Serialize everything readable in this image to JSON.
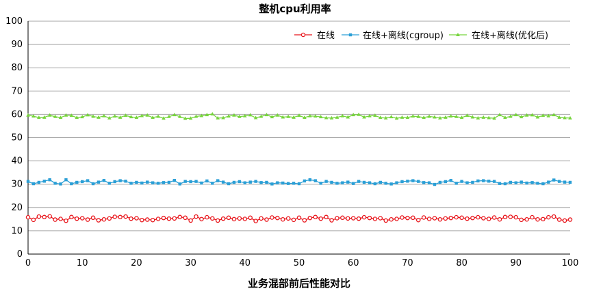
{
  "chart_data": {
    "type": "line",
    "title": "整机cpu利用率",
    "xlabel": "业务混部前后性能对比",
    "ylabel": "",
    "xlim": [
      0,
      100
    ],
    "ylim": [
      0,
      100
    ],
    "xticks": [
      0,
      10,
      20,
      30,
      40,
      50,
      60,
      70,
      80,
      90,
      100
    ],
    "yticks": [
      0,
      10,
      20,
      30,
      40,
      50,
      60,
      70,
      80,
      90,
      100
    ],
    "grid": true,
    "legend_position": "top-right",
    "x": [
      0,
      1,
      2,
      3,
      4,
      5,
      6,
      7,
      8,
      9,
      10,
      11,
      12,
      13,
      14,
      15,
      16,
      17,
      18,
      19,
      20,
      21,
      22,
      23,
      24,
      25,
      26,
      27,
      28,
      29,
      30,
      31,
      32,
      33,
      34,
      35,
      36,
      37,
      38,
      39,
      40,
      41,
      42,
      43,
      44,
      45,
      46,
      47,
      48,
      49,
      50,
      51,
      52,
      53,
      54,
      55,
      56,
      57,
      58,
      59,
      60,
      61,
      62,
      63,
      64,
      65,
      66,
      67,
      68,
      69,
      70,
      71,
      72,
      73,
      74,
      75,
      76,
      77,
      78,
      79,
      80,
      81,
      82,
      83,
      84,
      85,
      86,
      87,
      88,
      89,
      90,
      91,
      92,
      93,
      94,
      95,
      96,
      97,
      98,
      99,
      100
    ],
    "series": [
      {
        "name": "在线",
        "color": "#e8141a",
        "marker": "circle",
        "values": [
          15.8,
          14.7,
          16.1,
          15.9,
          16.2,
          14.8,
          15.1,
          14.3,
          15.9,
          15.2,
          15.4,
          14.8,
          15.6,
          14.5,
          14.9,
          15.3,
          16.0,
          15.9,
          16.1,
          15.2,
          15.4,
          14.6,
          14.8,
          14.6,
          15.1,
          15.5,
          15.2,
          15.3,
          15.9,
          15.6,
          14.4,
          16.1,
          15.0,
          15.8,
          15.3,
          14.4,
          15.2,
          15.6,
          15.0,
          15.3,
          15.1,
          15.6,
          14.2,
          15.3,
          14.8,
          15.7,
          15.5,
          14.9,
          15.3,
          14.7,
          15.6,
          14.5,
          15.5,
          15.9,
          15.2,
          15.9,
          14.5,
          15.4,
          15.6,
          15.3,
          15.4,
          15.2,
          15.8,
          15.5,
          15.1,
          15.4,
          14.4,
          14.9,
          15.1,
          15.7,
          15.5,
          15.6,
          14.6,
          15.7,
          15.1,
          15.4,
          14.9,
          15.3,
          15.5,
          15.8,
          15.6,
          15.2,
          15.5,
          15.8,
          15.4,
          15.1,
          15.7,
          14.9,
          15.9,
          16.0,
          15.8,
          14.7,
          14.9,
          15.8,
          14.9,
          15.0,
          15.8,
          16.1,
          14.8,
          14.4,
          14.8
        ]
      },
      {
        "name": "在线+离线(cgroup)",
        "color": "#2b9fd6",
        "marker": "square",
        "values": [
          31.2,
          30.2,
          30.8,
          31.3,
          31.9,
          30.4,
          30.1,
          31.9,
          30.2,
          30.8,
          31.1,
          31.5,
          30.2,
          30.9,
          31.6,
          30.4,
          31.1,
          31.5,
          31.3,
          30.4,
          30.8,
          30.5,
          30.9,
          30.6,
          30.4,
          30.7,
          30.8,
          31.6,
          30.1,
          31.2,
          31.1,
          31.2,
          30.5,
          31.4,
          30.4,
          31.5,
          30.9,
          30.2,
          30.8,
          31.1,
          30.6,
          30.9,
          31.2,
          30.7,
          30.8,
          30.1,
          30.6,
          30.5,
          30.3,
          30.4,
          30.2,
          31.4,
          31.9,
          31.5,
          30.4,
          31.2,
          30.8,
          30.4,
          30.6,
          30.9,
          30.3,
          31.2,
          30.8,
          30.6,
          30.2,
          30.8,
          30.4,
          30.1,
          30.6,
          31.1,
          31.3,
          31.5,
          31.2,
          30.7,
          30.6,
          29.9,
          30.8,
          31.1,
          31.6,
          30.4,
          31.2,
          30.6,
          30.8,
          31.4,
          31.5,
          31.3,
          31.2,
          30.3,
          30.2,
          30.8,
          30.6,
          30.9,
          30.5,
          30.7,
          30.4,
          30.2,
          30.9,
          31.8,
          31.2,
          30.9,
          30.8
        ]
      },
      {
        "name": "在线+离线(优化后)",
        "color": "#76d43c",
        "marker": "triangle",
        "values": [
          59.6,
          59.2,
          58.6,
          58.7,
          59.6,
          59.0,
          58.6,
          59.6,
          59.5,
          58.6,
          58.9,
          59.7,
          59.1,
          58.7,
          59.3,
          58.4,
          59.2,
          58.7,
          59.5,
          58.9,
          58.6,
          59.4,
          59.6,
          58.6,
          59.1,
          58.3,
          59.0,
          59.8,
          59.0,
          58.2,
          58.3,
          59.1,
          59.4,
          59.8,
          60.1,
          58.4,
          58.5,
          59.2,
          59.6,
          59.0,
          59.3,
          59.7,
          58.5,
          59.1,
          59.8,
          58.9,
          59.6,
          58.8,
          59.0,
          58.7,
          59.5,
          58.6,
          59.3,
          59.2,
          58.9,
          58.5,
          58.4,
          58.7,
          59.3,
          58.8,
          59.8,
          59.9,
          58.8,
          59.3,
          59.5,
          58.6,
          58.4,
          58.9,
          58.3,
          58.7,
          58.6,
          59.2,
          59.0,
          58.6,
          59.1,
          58.8,
          58.4,
          58.7,
          59.2,
          59.0,
          58.6,
          59.5,
          58.8,
          58.4,
          58.7,
          58.5,
          58.3,
          59.8,
          58.6,
          59.1,
          59.8,
          58.9,
          59.6,
          59.7,
          58.8,
          59.5,
          59.3,
          59.8,
          58.7,
          58.5,
          58.4
        ]
      }
    ]
  }
}
